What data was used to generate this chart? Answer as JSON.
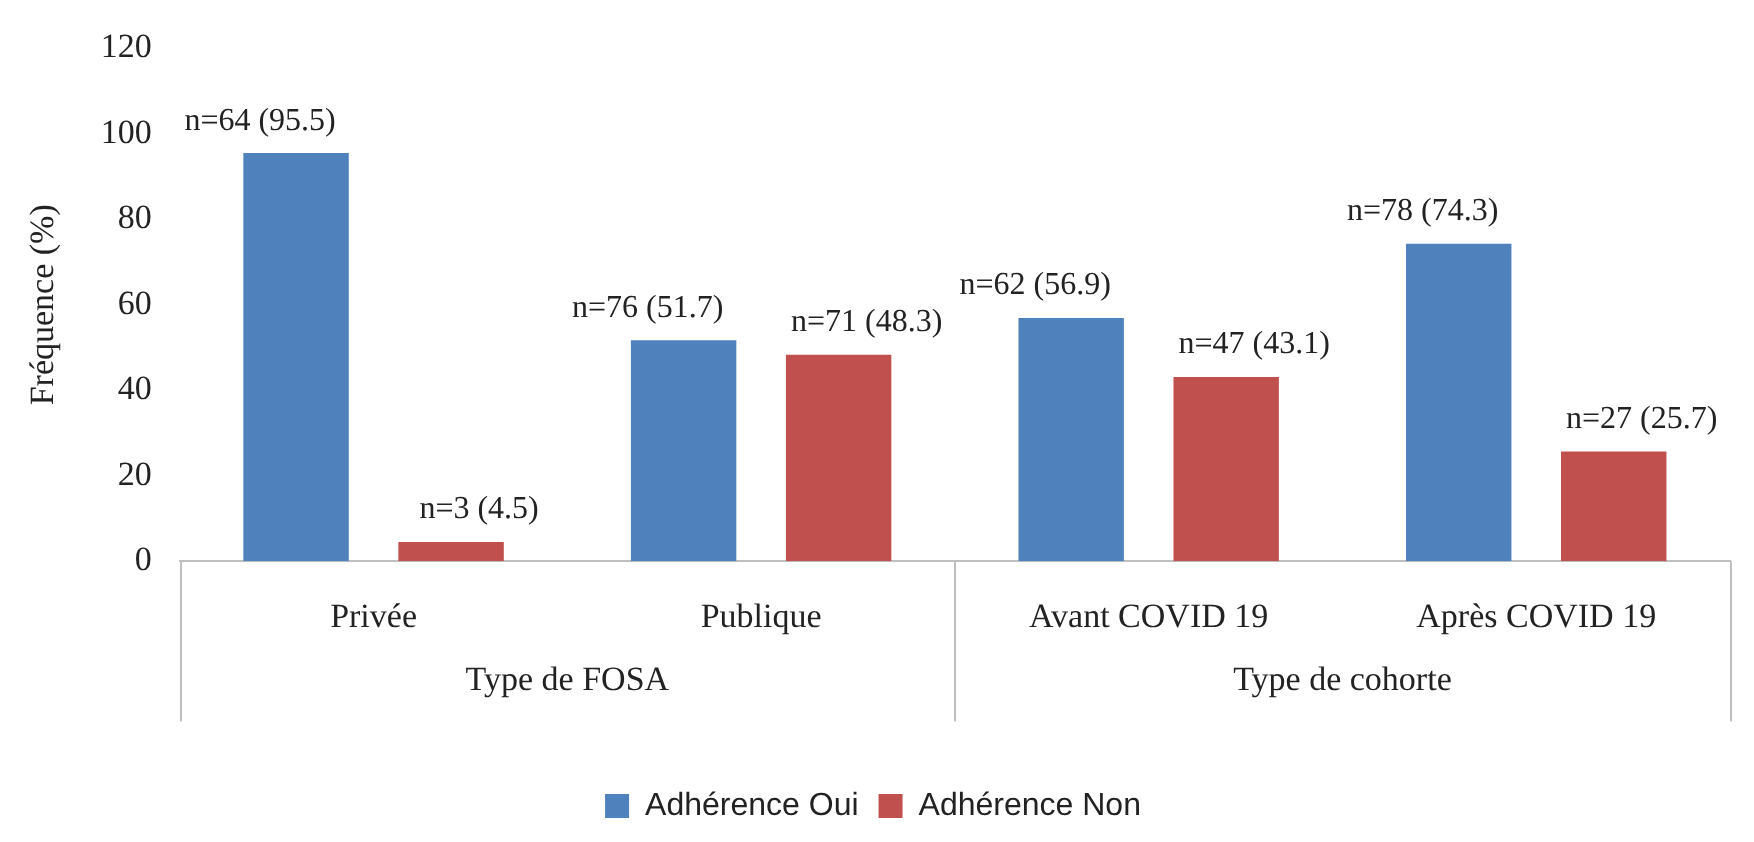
{
  "chart_data": {
    "type": "bar",
    "ylabel": "Fréquence (%)",
    "categories": [
      "Privée",
      "Publique",
      "Avant COVID 19",
      "Après COVID 19"
    ],
    "series": [
      {
        "name": "Adhérence Oui",
        "color": "#4f81bd",
        "values": [
          95.5,
          51.7,
          56.9,
          74.3
        ],
        "value_labels": [
          "n=64 (95.5)",
          "n=76 (51.7)",
          "n=62 (56.9)",
          "n=78 (74.3)"
        ]
      },
      {
        "name": "Adhérence Non",
        "color": "#c0504d",
        "values": [
          4.5,
          48.3,
          43.1,
          25.7
        ],
        "value_labels": [
          "n=3 (4.5)",
          "n=71 (48.3)",
          "n=47 (43.1)",
          "n=27 (25.7)"
        ]
      }
    ],
    "annotations": [
      "Type de FOSA",
      "Type de cohorte"
    ],
    "ylim": [
      0,
      120
    ],
    "yticks": [
      0,
      20,
      40,
      60,
      80,
      100,
      120
    ],
    "grid": false,
    "legend": "bottom"
  }
}
